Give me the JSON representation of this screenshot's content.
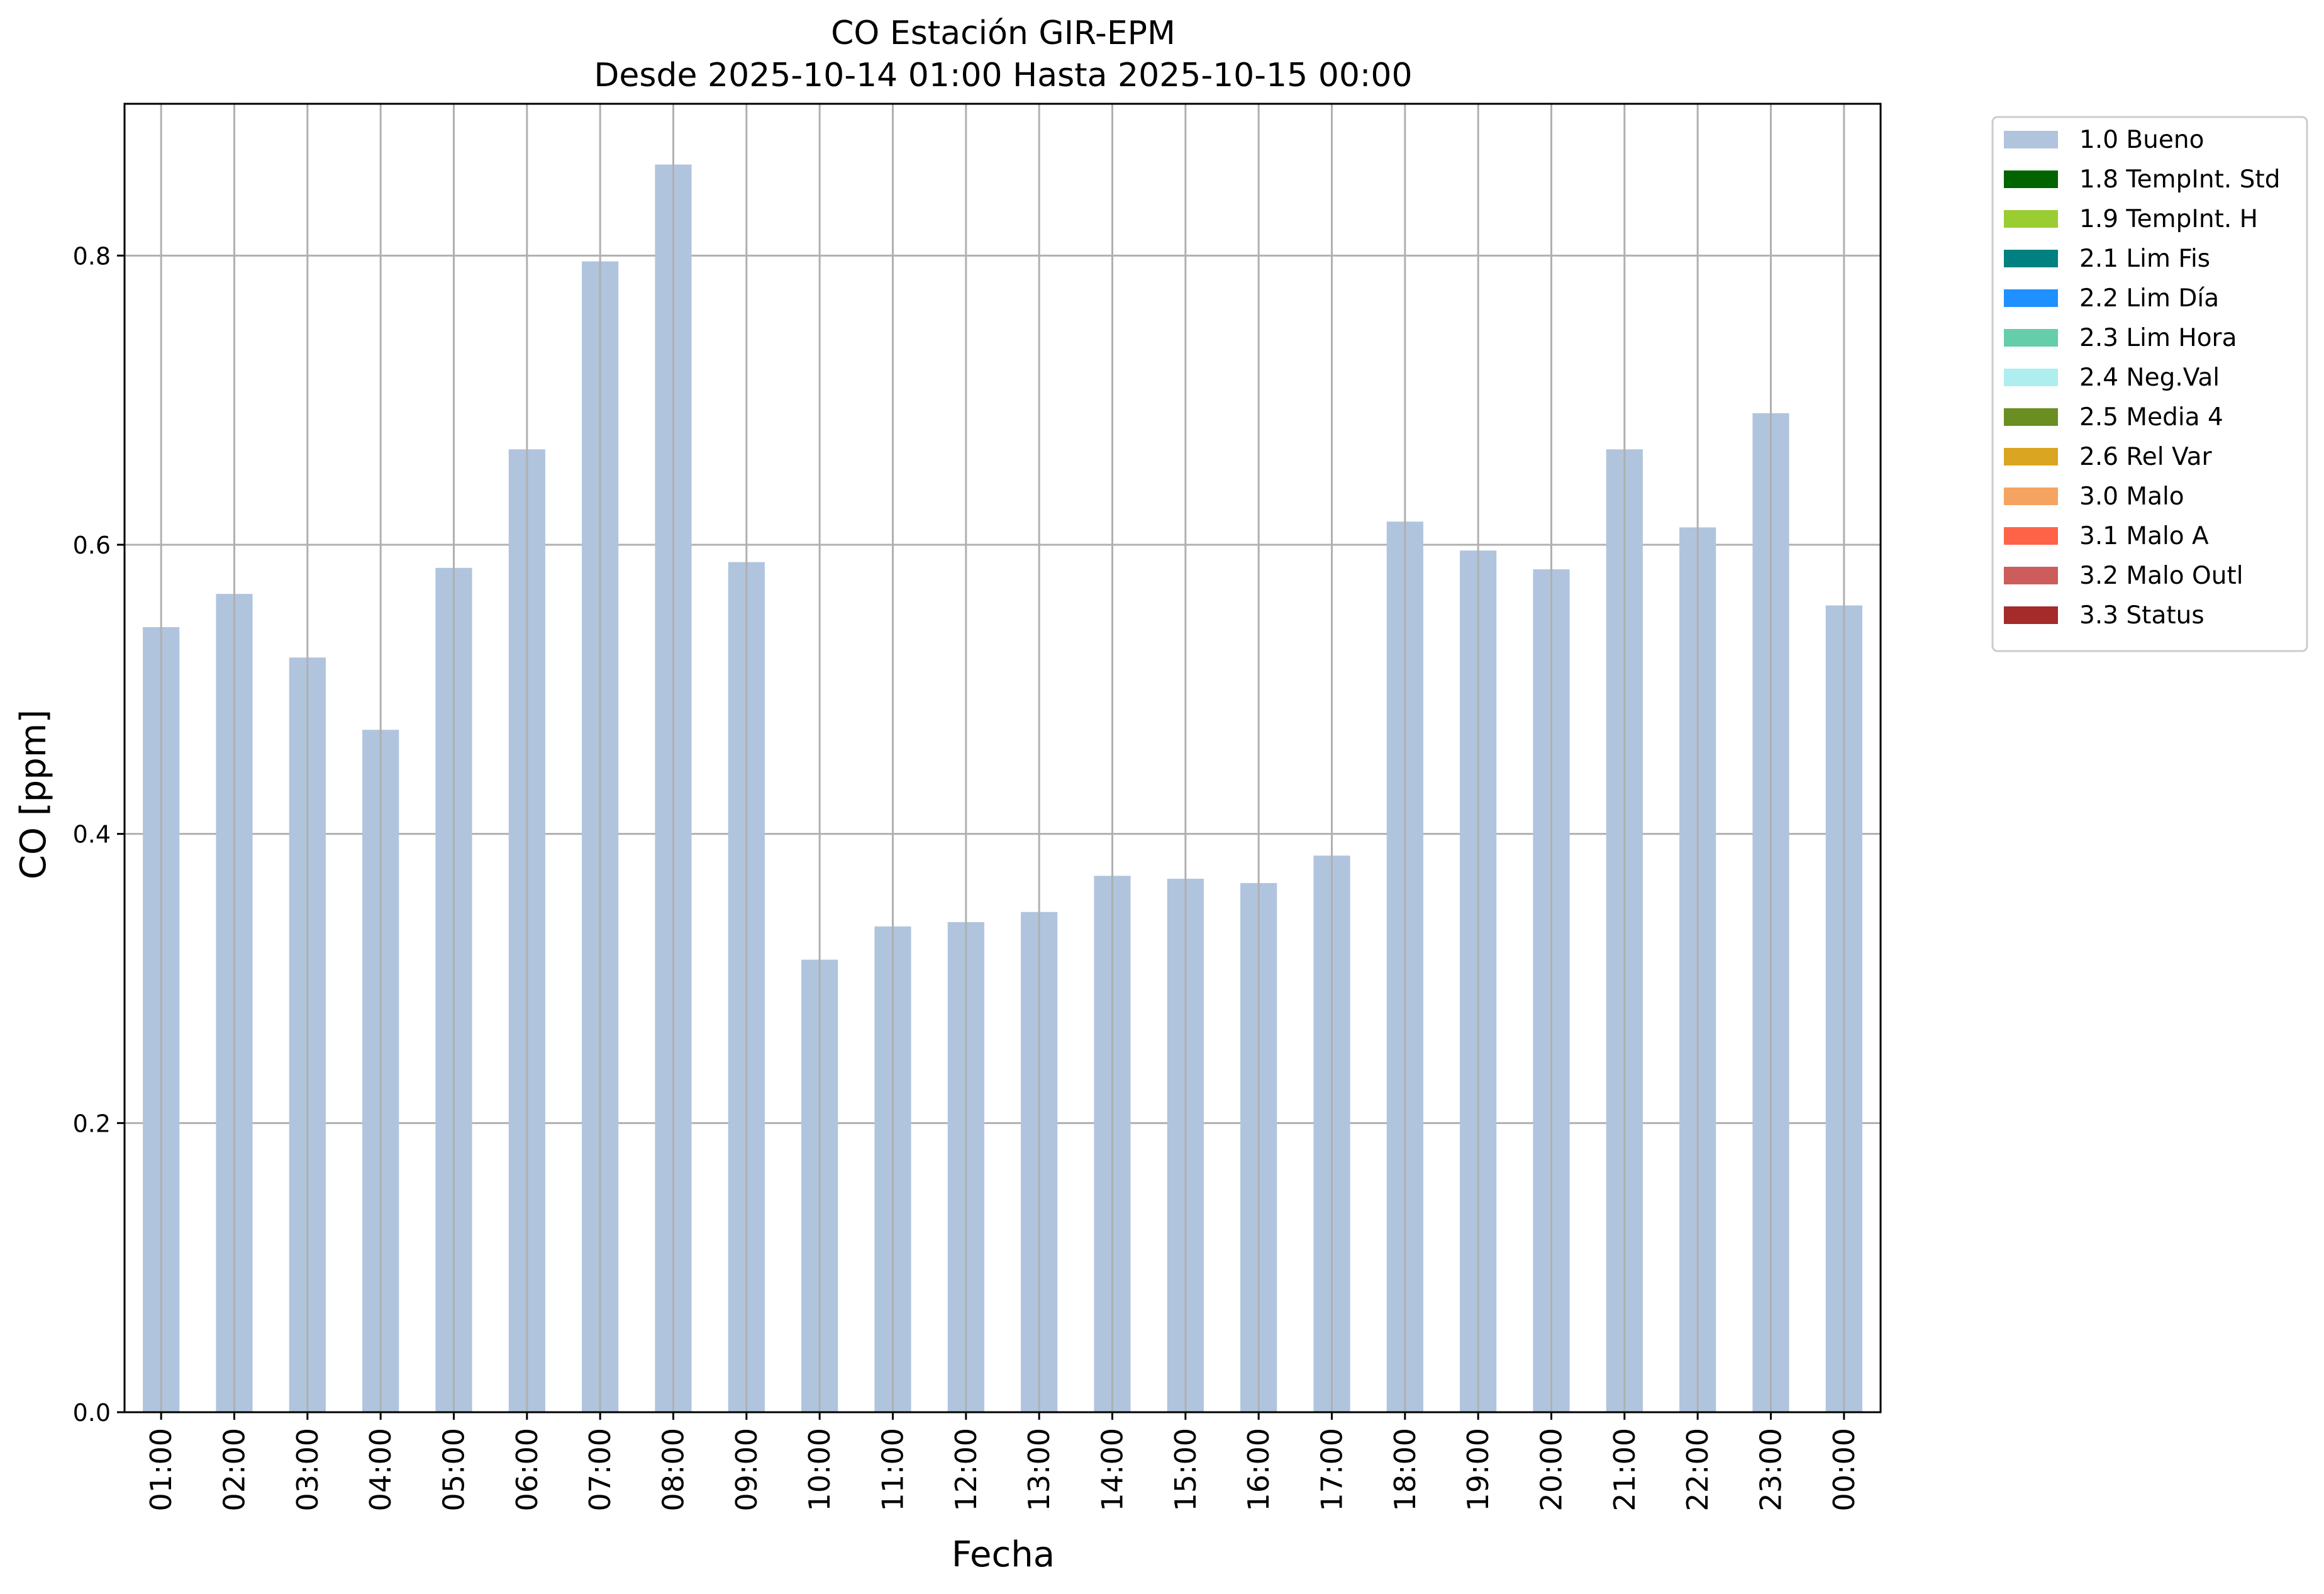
{
  "chart_data": {
    "type": "bar",
    "title": "CO Estación GIR-EPM",
    "subtitle": "Desde 2025-10-14 01:00 Hasta 2025-10-15 00:00",
    "xlabel": "Fecha",
    "ylabel": "CO [ppm]",
    "ylim": [
      0,
      0.905
    ],
    "yticks": [
      "0.0",
      "0.2",
      "0.4",
      "0.6",
      "0.8"
    ],
    "ytick_values": [
      0,
      0.2,
      0.4,
      0.6,
      0.8
    ],
    "grid": true,
    "legend_position": "outside-right",
    "categories": [
      "01:00",
      "02:00",
      "03:00",
      "04:00",
      "05:00",
      "06:00",
      "07:00",
      "08:00",
      "09:00",
      "10:00",
      "11:00",
      "12:00",
      "13:00",
      "14:00",
      "15:00",
      "16:00",
      "17:00",
      "18:00",
      "19:00",
      "20:00",
      "21:00",
      "22:00",
      "23:00",
      "00:00"
    ],
    "series": [
      {
        "name": "1.0 Bueno",
        "color": "#b0c4de",
        "values": [
          0.543,
          0.566,
          0.522,
          0.472,
          0.584,
          0.666,
          0.796,
          0.863,
          0.588,
          0.313,
          0.336,
          0.339,
          0.346,
          0.371,
          0.369,
          0.366,
          0.385,
          0.616,
          0.596,
          0.583,
          0.666,
          0.612,
          0.691,
          0.558
        ]
      }
    ],
    "legend": [
      {
        "label": "1.0 Bueno",
        "color": "#b0c4de"
      },
      {
        "label": "1.8 TempInt. Std",
        "color": "#006400"
      },
      {
        "label": "1.9 TempInt. H",
        "color": "#9acd32"
      },
      {
        "label": "2.1 Lim Fis",
        "color": "#008080"
      },
      {
        "label": "2.2 Lim Día",
        "color": "#1e90ff"
      },
      {
        "label": "2.3 Lim Hora",
        "color": "#66cdaa"
      },
      {
        "label": "2.4 Neg.Val",
        "color": "#afeeee"
      },
      {
        "label": "2.5 Media 4",
        "color": "#6b8e23"
      },
      {
        "label": "2.6 Rel Var",
        "color": "#daa520"
      },
      {
        "label": "3.0 Malo",
        "color": "#f4a460"
      },
      {
        "label": "3.1 Malo A",
        "color": "#ff6347"
      },
      {
        "label": "3.2 Malo Outl",
        "color": "#cd5c5c"
      },
      {
        "label": "3.3 Status",
        "color": "#a52a2a"
      }
    ]
  }
}
